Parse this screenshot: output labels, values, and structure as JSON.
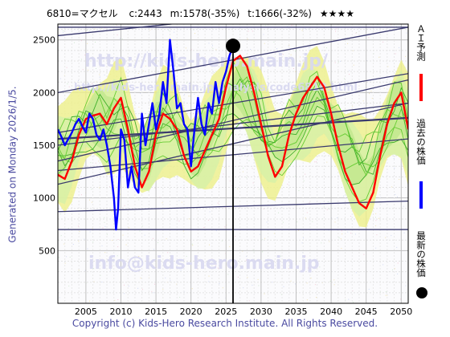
{
  "header": {
    "code": "6810=マクセル",
    "c": "c:2443",
    "m": "m:1578(-35%)",
    "t": "t:1666(-32%)",
    "stars": "★★★★"
  },
  "generated": "Generated on Monday 2026/1/5.",
  "copyright": "Copyright (c) Kids-Hero Research Institute. All Rights Reserved.",
  "watermarks": {
    "url_large": "http://kids-hero.main.jp/",
    "url_small": "http://kids-hero.main.jp/analysis/code6810.html",
    "email": "info@kids-hero.main.jp"
  },
  "legend": {
    "ai": "ＡＩ予測",
    "past": "過去の株価",
    "latest": "最新の株価"
  },
  "colors": {
    "ai": "#ff0000",
    "past": "#0000ff",
    "latest": "#000000",
    "band_green": "#66cc33",
    "band_yellow": "#eef088",
    "trend": "#3a3a6e"
  },
  "chart_data": {
    "type": "line",
    "title": "",
    "xlabel": "",
    "ylabel": "",
    "xlim": [
      2001,
      2051
    ],
    "ylim": [
      0,
      2650
    ],
    "x_ticks": [
      2005,
      2010,
      2015,
      2020,
      2025,
      2030,
      2035,
      2040,
      2045,
      2050
    ],
    "y_ticks": [
      500,
      1000,
      1500,
      2000,
      2500
    ],
    "grid": true,
    "latest_point": {
      "x": 2026.0,
      "y": 2443
    },
    "current_year_line": 2026.0,
    "series": [
      {
        "name": "過去の株価",
        "x": [
          2001.0,
          2001.5,
          2002.0,
          2002.5,
          2003.0,
          2003.5,
          2004.0,
          2004.5,
          2005.0,
          2005.5,
          2006.0,
          2006.5,
          2007.0,
          2007.5,
          2008.0,
          2008.5,
          2009.0,
          2009.3,
          2009.6,
          2010.0,
          2010.5,
          2011.0,
          2011.5,
          2012.0,
          2012.5,
          2013.0,
          2013.5,
          2014.0,
          2014.5,
          2015.0,
          2015.5,
          2016.0,
          2016.5,
          2017.0,
          2017.5,
          2018.0,
          2018.5,
          2019.0,
          2019.5,
          2020.0,
          2020.5,
          2021.0,
          2021.5,
          2022.0,
          2022.5,
          2023.0,
          2023.5,
          2024.0,
          2024.5,
          2025.0,
          2025.5,
          2026.0
        ],
        "y": [
          1650,
          1580,
          1500,
          1560,
          1620,
          1700,
          1750,
          1680,
          1620,
          1800,
          1750,
          1600,
          1550,
          1650,
          1500,
          1300,
          1000,
          700,
          900,
          1650,
          1550,
          1100,
          1300,
          1100,
          1050,
          1800,
          1500,
          1700,
          1900,
          1650,
          1800,
          2100,
          1900,
          2500,
          2200,
          1850,
          1900,
          1700,
          1650,
          1300,
          1650,
          1950,
          1700,
          1600,
          1900,
          1800,
          2100,
          1900,
          2100,
          2200,
          2350,
          2443
        ]
      },
      {
        "name": "ＡＩ予測",
        "x": [
          2001.0,
          2002.0,
          2003.0,
          2004.0,
          2005.0,
          2006.0,
          2007.0,
          2008.0,
          2009.0,
          2010.0,
          2011.0,
          2012.0,
          2013.0,
          2014.0,
          2015.0,
          2016.0,
          2017.0,
          2018.0,
          2019.0,
          2020.0,
          2021.0,
          2022.0,
          2023.0,
          2024.0,
          2025.0,
          2026.0,
          2027.0,
          2028.0,
          2029.0,
          2030.0,
          2031.0,
          2032.0,
          2033.0,
          2034.0,
          2035.0,
          2036.0,
          2037.0,
          2038.0,
          2039.0,
          2040.0,
          2041.0,
          2042.0,
          2043.0,
          2044.0,
          2045.0,
          2046.0,
          2047.0,
          2048.0,
          2049.0,
          2050.0,
          2051.0
        ],
        "y": [
          1220,
          1180,
          1350,
          1600,
          1750,
          1780,
          1800,
          1700,
          1850,
          1950,
          1650,
          1300,
          1100,
          1250,
          1600,
          1800,
          1750,
          1650,
          1400,
          1250,
          1300,
          1450,
          1600,
          1750,
          2050,
          2300,
          2350,
          2250,
          2000,
          1700,
          1400,
          1200,
          1300,
          1600,
          1800,
          1950,
          2050,
          2150,
          2050,
          1800,
          1500,
          1250,
          1100,
          950,
          900,
          1050,
          1400,
          1700,
          1900,
          2000,
          1650
        ]
      }
    ]
  }
}
